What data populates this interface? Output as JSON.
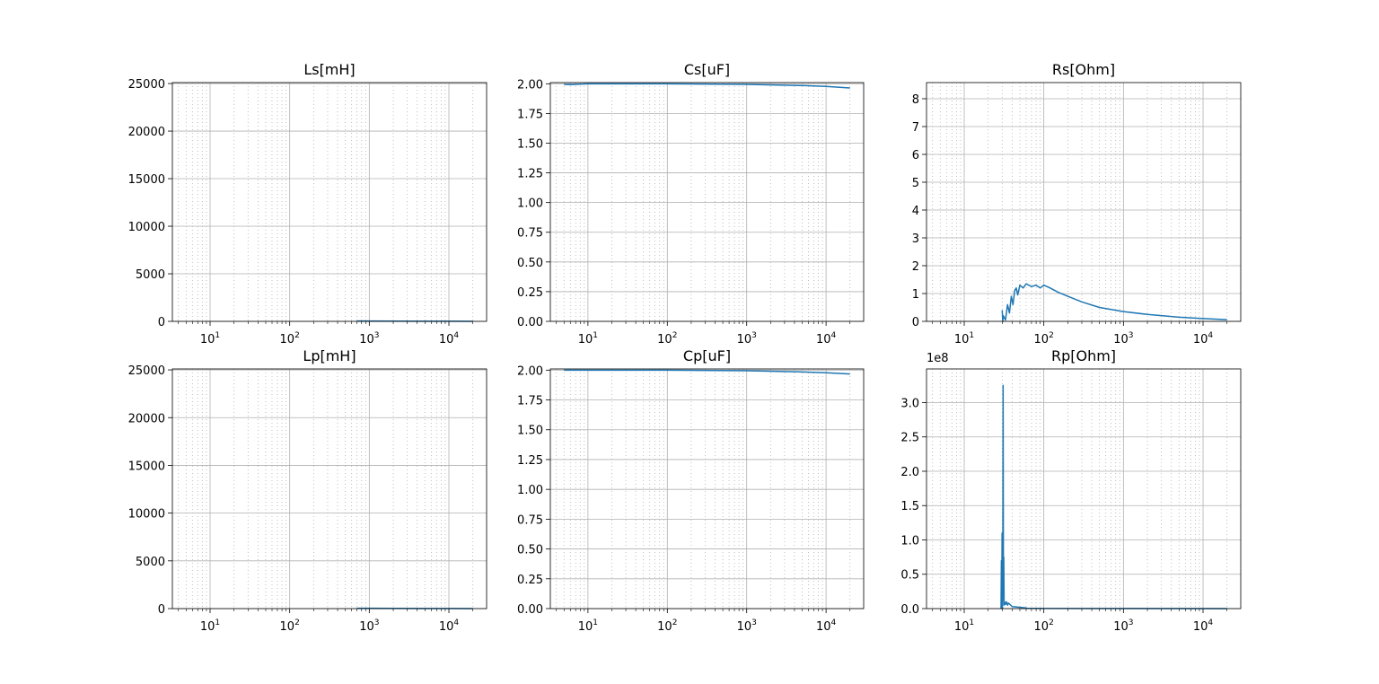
{
  "chart_data": [
    {
      "type": "line",
      "title": "Ls[mH]",
      "xscale": "log",
      "xlim": [
        3.36,
        29760
      ],
      "ylim": [
        0,
        25100
      ],
      "grid": true,
      "minor_grid": true,
      "xticks": [
        {
          "value": 10,
          "label": "10",
          "exponent": "1"
        },
        {
          "value": 100,
          "label": "10",
          "exponent": "2"
        },
        {
          "value": 1000,
          "label": "10",
          "exponent": "3"
        },
        {
          "value": 10000,
          "label": "10",
          "exponent": "4"
        }
      ],
      "xminorticks": [
        4,
        5,
        6,
        7,
        8,
        9,
        20,
        30,
        40,
        50,
        60,
        70,
        80,
        90,
        200,
        300,
        400,
        500,
        600,
        700,
        800,
        900,
        2000,
        3000,
        4000,
        5000,
        6000,
        7000,
        8000,
        9000,
        20000
      ],
      "yticks": [
        0,
        5000,
        10000,
        15000,
        20000,
        25000
      ],
      "x": [
        700,
        1000,
        2000,
        5000,
        10000,
        20000
      ],
      "series": [
        {
          "color": "#1f77b4",
          "values": [
            40,
            30,
            20,
            12,
            8,
            5
          ]
        }
      ]
    },
    {
      "type": "line",
      "title": "Cs[uF]",
      "xscale": "log",
      "xlim": [
        3.36,
        29760
      ],
      "ylim": [
        0,
        2.01
      ],
      "grid": true,
      "minor_grid": true,
      "xticks": [
        {
          "value": 10,
          "label": "10",
          "exponent": "1"
        },
        {
          "value": 100,
          "label": "10",
          "exponent": "2"
        },
        {
          "value": 1000,
          "label": "10",
          "exponent": "3"
        },
        {
          "value": 10000,
          "label": "10",
          "exponent": "4"
        }
      ],
      "xminorticks": [
        4,
        5,
        6,
        7,
        8,
        9,
        20,
        30,
        40,
        50,
        60,
        70,
        80,
        90,
        200,
        300,
        400,
        500,
        600,
        700,
        800,
        900,
        2000,
        3000,
        4000,
        5000,
        6000,
        7000,
        8000,
        9000,
        20000
      ],
      "yticks": [
        {
          "value": 0,
          "label": "0.00"
        },
        {
          "value": 0.25,
          "label": "0.25"
        },
        {
          "value": 0.5,
          "label": "0.50"
        },
        {
          "value": 0.75,
          "label": "0.75"
        },
        {
          "value": 1,
          "label": "1.00"
        },
        {
          "value": 1.25,
          "label": "1.25"
        },
        {
          "value": 1.5,
          "label": "1.50"
        },
        {
          "value": 1.75,
          "label": "1.75"
        },
        {
          "value": 2,
          "label": "2.00"
        }
      ],
      "x": [
        5,
        6,
        10,
        100,
        1000,
        5000,
        10000,
        20000
      ],
      "series": [
        {
          "color": "#1f77b4",
          "values": [
            1.995,
            1.993,
            2.0,
            2.0,
            1.995,
            1.985,
            1.978,
            1.965
          ]
        }
      ]
    },
    {
      "type": "line",
      "title": "Rs[Ohm]",
      "xscale": "log",
      "xlim": [
        3.36,
        29760
      ],
      "ylim": [
        0,
        8.58
      ],
      "grid": true,
      "minor_grid": true,
      "xticks": [
        {
          "value": 10,
          "label": "10",
          "exponent": "1"
        },
        {
          "value": 100,
          "label": "10",
          "exponent": "2"
        },
        {
          "value": 1000,
          "label": "10",
          "exponent": "3"
        },
        {
          "value": 10000,
          "label": "10",
          "exponent": "4"
        }
      ],
      "xminorticks": [
        4,
        5,
        6,
        7,
        8,
        9,
        20,
        30,
        40,
        50,
        60,
        70,
        80,
        90,
        200,
        300,
        400,
        500,
        600,
        700,
        800,
        900,
        2000,
        3000,
        4000,
        5000,
        6000,
        7000,
        8000,
        9000,
        20000
      ],
      "yticks": [
        0,
        1,
        2,
        3,
        4,
        5,
        6,
        7,
        8
      ],
      "x": [
        30,
        30.5,
        31,
        33,
        35,
        37,
        39,
        41,
        43,
        45,
        47,
        50,
        55,
        60,
        70,
        80,
        90,
        100,
        120,
        150,
        200,
        300,
        500,
        1000,
        2000,
        5000,
        10000,
        20000
      ],
      "series": [
        {
          "color": "#1f77b4",
          "values": [
            0.4,
            0,
            0.2,
            0.05,
            0.6,
            0.3,
            0.9,
            0.6,
            1.1,
            1.2,
            0.95,
            1.3,
            1.2,
            1.35,
            1.25,
            1.3,
            1.2,
            1.3,
            1.2,
            1.05,
            0.9,
            0.7,
            0.5,
            0.35,
            0.25,
            0.15,
            0.1,
            0.06
          ]
        }
      ]
    },
    {
      "type": "line",
      "title": "Lp[mH]",
      "xscale": "log",
      "xlim": [
        3.36,
        29760
      ],
      "ylim": [
        0,
        25100
      ],
      "grid": true,
      "minor_grid": true,
      "xticks": [
        {
          "value": 10,
          "label": "10",
          "exponent": "1"
        },
        {
          "value": 100,
          "label": "10",
          "exponent": "2"
        },
        {
          "value": 1000,
          "label": "10",
          "exponent": "3"
        },
        {
          "value": 10000,
          "label": "10",
          "exponent": "4"
        }
      ],
      "xminorticks": [
        4,
        5,
        6,
        7,
        8,
        9,
        20,
        30,
        40,
        50,
        60,
        70,
        80,
        90,
        200,
        300,
        400,
        500,
        600,
        700,
        800,
        900,
        2000,
        3000,
        4000,
        5000,
        6000,
        7000,
        8000,
        9000,
        20000
      ],
      "yticks": [
        0,
        5000,
        10000,
        15000,
        20000,
        25000
      ],
      "x": [
        700,
        1000,
        2000,
        5000,
        10000,
        20000
      ],
      "series": [
        {
          "color": "#1f77b4",
          "values": [
            40,
            30,
            20,
            12,
            8,
            5
          ]
        }
      ]
    },
    {
      "type": "line",
      "title": "Cp[uF]",
      "xscale": "log",
      "xlim": [
        3.36,
        29760
      ],
      "ylim": [
        0,
        2.01
      ],
      "grid": true,
      "minor_grid": true,
      "xticks": [
        {
          "value": 10,
          "label": "10",
          "exponent": "1"
        },
        {
          "value": 100,
          "label": "10",
          "exponent": "2"
        },
        {
          "value": 1000,
          "label": "10",
          "exponent": "3"
        },
        {
          "value": 10000,
          "label": "10",
          "exponent": "4"
        }
      ],
      "xminorticks": [
        4,
        5,
        6,
        7,
        8,
        9,
        20,
        30,
        40,
        50,
        60,
        70,
        80,
        90,
        200,
        300,
        400,
        500,
        600,
        700,
        800,
        900,
        2000,
        3000,
        4000,
        5000,
        6000,
        7000,
        8000,
        9000,
        20000
      ],
      "yticks": [
        {
          "value": 0,
          "label": "0.00"
        },
        {
          "value": 0.25,
          "label": "0.25"
        },
        {
          "value": 0.5,
          "label": "0.50"
        },
        {
          "value": 0.75,
          "label": "0.75"
        },
        {
          "value": 1,
          "label": "1.00"
        },
        {
          "value": 1.25,
          "label": "1.25"
        },
        {
          "value": 1.5,
          "label": "1.50"
        },
        {
          "value": 1.75,
          "label": "1.75"
        },
        {
          "value": 2,
          "label": "2.00"
        }
      ],
      "x": [
        5,
        10,
        100,
        1000,
        5000,
        10000,
        20000
      ],
      "series": [
        {
          "color": "#1f77b4",
          "values": [
            2.0,
            2.0,
            2.0,
            1.995,
            1.985,
            1.978,
            1.968
          ]
        }
      ]
    },
    {
      "type": "line",
      "title": "Rp[Ohm]",
      "offset_text": "1e8",
      "xscale": "log",
      "xlim": [
        3.36,
        29760
      ],
      "ylim": [
        0,
        349000000
      ],
      "grid": true,
      "minor_grid": true,
      "xticks": [
        {
          "value": 10,
          "label": "10",
          "exponent": "1"
        },
        {
          "value": 100,
          "label": "10",
          "exponent": "2"
        },
        {
          "value": 1000,
          "label": "10",
          "exponent": "3"
        },
        {
          "value": 10000,
          "label": "10",
          "exponent": "4"
        }
      ],
      "xminorticks": [
        4,
        5,
        6,
        7,
        8,
        9,
        20,
        30,
        40,
        50,
        60,
        70,
        80,
        90,
        200,
        300,
        400,
        500,
        600,
        700,
        800,
        900,
        2000,
        3000,
        4000,
        5000,
        6000,
        7000,
        8000,
        9000,
        20000
      ],
      "yticks": [
        {
          "value": 0,
          "label": "0.0"
        },
        {
          "value": 50000000,
          "label": "0.5"
        },
        {
          "value": 100000000,
          "label": "1.0"
        },
        {
          "value": 150000000,
          "label": "1.5"
        },
        {
          "value": 200000000,
          "label": "2.0"
        },
        {
          "value": 250000000,
          "label": "2.5"
        },
        {
          "value": 300000000,
          "label": "3.0"
        }
      ],
      "x": [
        29,
        29.3,
        29.6,
        29.9,
        30.2,
        30.5,
        30.8,
        31.1,
        31.4,
        31.7,
        32,
        33,
        34,
        35,
        36,
        40,
        60,
        100,
        1000,
        20000
      ],
      "series": [
        {
          "color": "#1f77b4",
          "values": [
            0,
            70000000,
            0,
            110000000,
            0,
            20000000,
            325000000,
            20000000,
            75000000,
            5000000,
            10000000,
            6000000,
            10000000,
            5000000,
            8000000,
            3000000,
            1000000,
            300000,
            100000,
            20000
          ]
        }
      ]
    }
  ]
}
